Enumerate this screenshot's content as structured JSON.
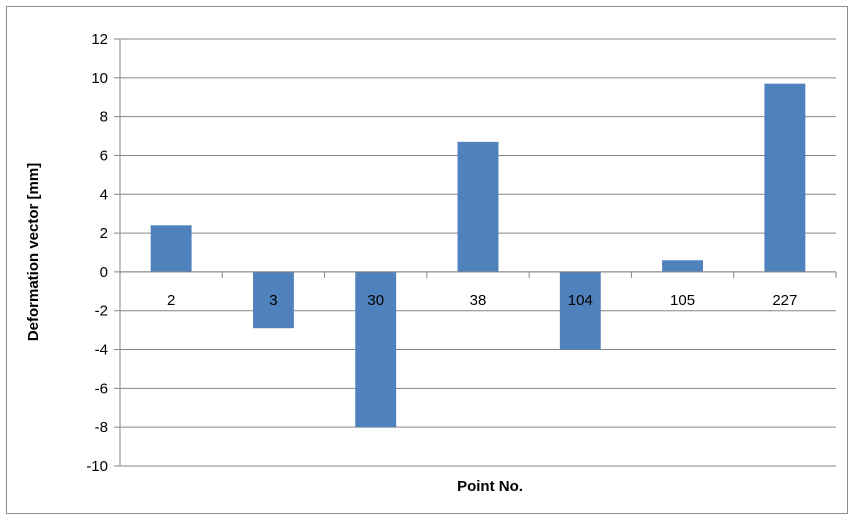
{
  "chart_data": {
    "type": "bar",
    "categories": [
      "2",
      "3",
      "30",
      "38",
      "104",
      "105",
      "227"
    ],
    "values": [
      2.4,
      -2.9,
      -8.0,
      6.7,
      -4.0,
      0.6,
      9.7
    ],
    "title": "",
    "xlabel": "Point No.",
    "ylabel": "Deformation vector [mm]",
    "ylim": [
      -10,
      12
    ],
    "yticks": [
      "12",
      "10",
      "8",
      "6",
      "4",
      "2",
      "0",
      "-2",
      "-4",
      "-6",
      "-8",
      "-10"
    ],
    "grid": true,
    "legend": "none",
    "bar_color": "#4f81bd",
    "grid_color": "#868686"
  }
}
